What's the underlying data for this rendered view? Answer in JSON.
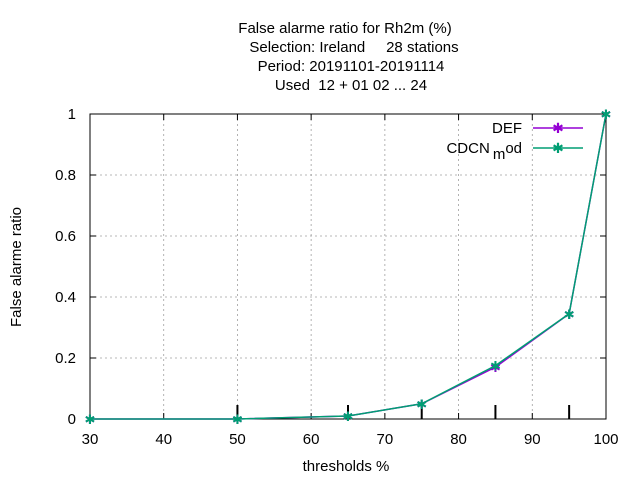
{
  "chart_data": {
    "type": "line",
    "title_lines": [
      "False alarme ratio  for Rh2m (%)",
      "Selection: Ireland     28 stations",
      "Period: 20191101-20191114",
      "Used  12 + 01 02 ... 24"
    ],
    "xlabel": "thresholds %",
    "ylabel": "False alarme ratio",
    "xlim": [
      30,
      100
    ],
    "ylim": [
      0,
      1
    ],
    "xticks": [
      30,
      40,
      50,
      60,
      70,
      80,
      90,
      100
    ],
    "yticks": [
      0,
      0.2,
      0.4,
      0.6,
      0.8,
      1
    ],
    "ytick_labels": [
      "0",
      "0.2",
      "0.4",
      "0.6",
      "0.8",
      "1"
    ],
    "grid": true,
    "legend_position": "top-right",
    "threshold_markers": [
      50,
      65,
      75,
      85,
      95
    ],
    "series": [
      {
        "name": "DEF",
        "color": "#9400d3",
        "x": [
          30,
          50,
          65,
          75,
          85,
          95,
          100
        ],
        "y": [
          0,
          0,
          0.01,
          0.05,
          0.17,
          0.345,
          1.0
        ]
      },
      {
        "name": "CDCN_mod",
        "legend_main": "CDCN",
        "legend_sub": "m",
        "legend_tail": "od",
        "color": "#009e73",
        "x": [
          30,
          50,
          65,
          75,
          85,
          95,
          100
        ],
        "y": [
          0,
          0,
          0.01,
          0.05,
          0.175,
          0.345,
          1.0
        ]
      }
    ]
  }
}
